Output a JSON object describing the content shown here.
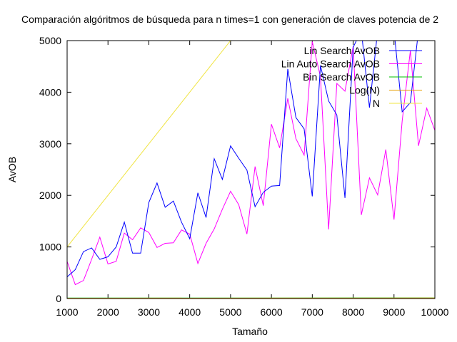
{
  "chart_data": {
    "type": "line",
    "title": "Comparación algóritmos de búsqueda para n times=1 con generación de claves potencia de 2",
    "xlabel": "Tamaño",
    "ylabel": "AvOB",
    "xlim": [
      1000,
      10000
    ],
    "ylim": [
      0,
      5000
    ],
    "xticks": [
      "1000",
      "2000",
      "3000",
      "4000",
      "5000",
      "6000",
      "7000",
      "8000",
      "9000",
      "10000"
    ],
    "yticks": [
      "0",
      "1000",
      "2000",
      "3000",
      "4000",
      "5000"
    ],
    "grid": false,
    "legend_position": "top-right",
    "series": [
      {
        "name": "Lin Search AvOB",
        "color": "#0000ff",
        "x": [
          1000,
          1200,
          1400,
          1600,
          1800,
          2000,
          2200,
          2400,
          2600,
          2800,
          3000,
          3200,
          3400,
          3600,
          3800,
          4000,
          4200,
          4400,
          4600,
          4800,
          5000,
          5200,
          5400,
          5600,
          5800,
          6000,
          6200,
          6400,
          6600,
          6800,
          7000,
          7200,
          7400,
          7600,
          7800,
          8000,
          8200,
          8400,
          8600,
          8800,
          9000,
          9200,
          9400,
          9600,
          9800,
          10000
        ],
        "y": [
          420,
          560,
          910,
          980,
          760,
          810,
          1000,
          1480,
          880,
          880,
          1860,
          2240,
          1770,
          1890,
          1480,
          1160,
          2050,
          1570,
          2710,
          2310,
          2960,
          2720,
          2490,
          1780,
          2060,
          2180,
          2190,
          4450,
          3510,
          3290,
          1980,
          4520,
          3830,
          3560,
          1950,
          4870,
          5200,
          3700,
          5200,
          5200,
          5200,
          3620,
          3800,
          5200,
          5200,
          5200
        ]
      },
      {
        "name": "Lin Auto Search AvOB",
        "color": "#ff00ff",
        "x": [
          1000,
          1200,
          1400,
          1600,
          1800,
          2000,
          2200,
          2400,
          2600,
          2800,
          3000,
          3200,
          3400,
          3600,
          3800,
          4000,
          4200,
          4400,
          4600,
          4800,
          5000,
          5200,
          5400,
          5600,
          5800,
          6000,
          6200,
          6400,
          6600,
          6800,
          7000,
          7200,
          7400,
          7600,
          7800,
          8000,
          8200,
          8400,
          8600,
          8800,
          9000,
          9200,
          9400,
          9600,
          9800,
          10000
        ],
        "y": [
          720,
          270,
          350,
          760,
          1190,
          670,
          720,
          1270,
          1140,
          1370,
          1280,
          990,
          1070,
          1080,
          1330,
          1250,
          680,
          1070,
          1350,
          1730,
          2080,
          1820,
          1250,
          2560,
          1800,
          3380,
          2920,
          3880,
          3100,
          2780,
          4980,
          4300,
          1340,
          4170,
          4020,
          4890,
          1620,
          2340,
          2010,
          2890,
          1530,
          3440,
          4810,
          2960,
          3690,
          3260
        ]
      },
      {
        "name": "Bin Search AvOB",
        "color": "#00c000",
        "x": [
          1000,
          10000
        ],
        "y": [
          10,
          13
        ]
      },
      {
        "name": "Log(N)",
        "color": "#e69f00",
        "x": [
          1000,
          10000
        ],
        "y": [
          7,
          9
        ]
      },
      {
        "name": "N",
        "color": "#f0e442",
        "x": [
          1000,
          10000
        ],
        "y": [
          1000,
          10000
        ]
      }
    ]
  }
}
